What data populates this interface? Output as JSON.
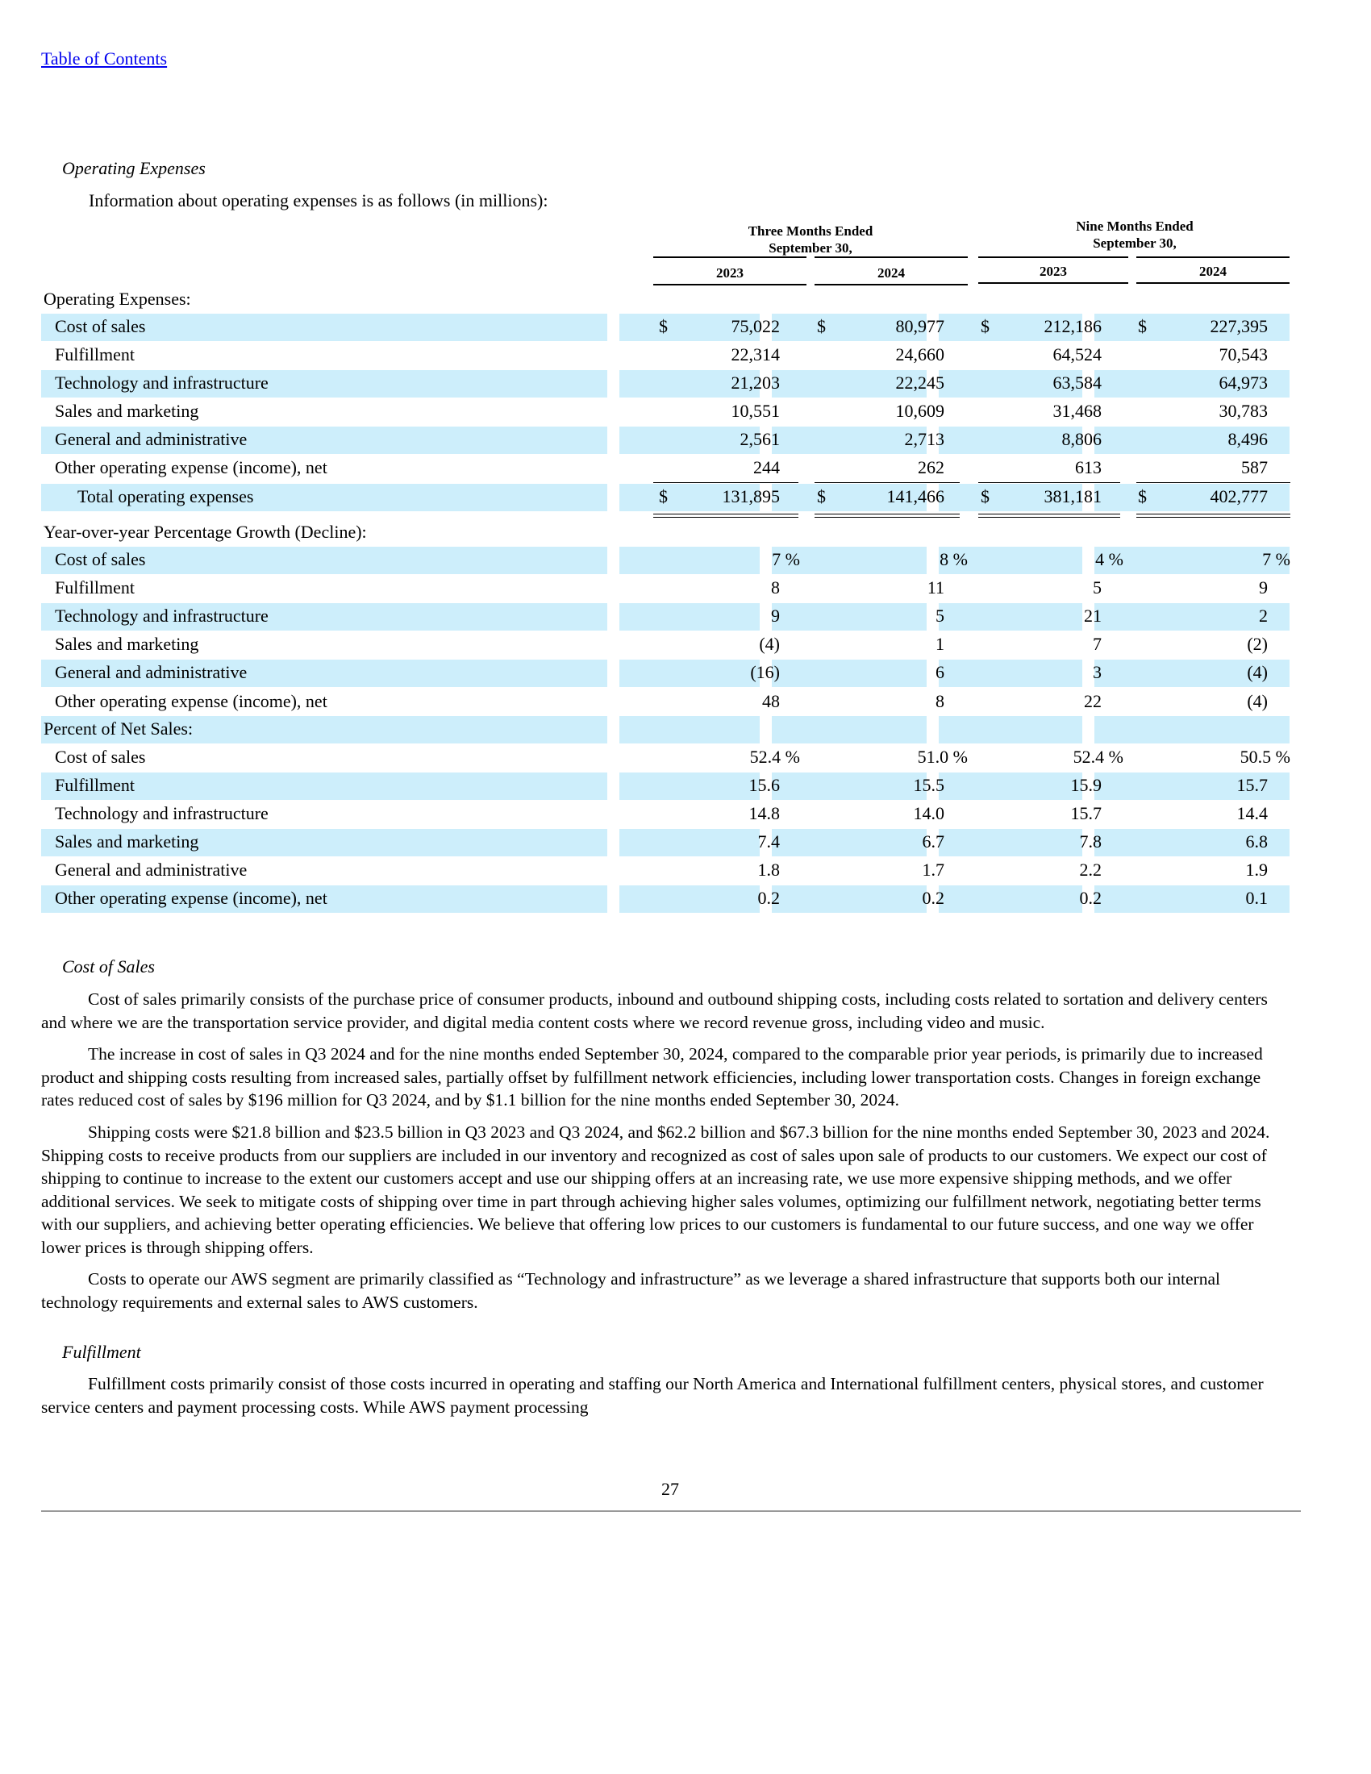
{
  "toc_link": "Table of Contents",
  "section1_title": "Operating Expenses",
  "intro": "Information about operating expenses is as follows (in millions):",
  "table": {
    "group_headers": [
      {
        "line1": "Three Months Ended",
        "line2": "September 30,"
      },
      {
        "line1": "Nine Months Ended",
        "line2": "September 30,"
      }
    ],
    "years": [
      "2023",
      "2024",
      "2023",
      "2024"
    ],
    "rows": [
      {
        "label": "Operating Expenses:",
        "indent": 0,
        "band": false,
        "values": [
          "",
          "",
          "",
          ""
        ],
        "dollar": false
      },
      {
        "label": "Cost of sales",
        "indent": 1,
        "band": true,
        "values": [
          "75,022",
          "80,977",
          "212,186",
          "227,395"
        ],
        "dollar": true
      },
      {
        "label": "Fulfillment",
        "indent": 1,
        "band": false,
        "values": [
          "22,314",
          "24,660",
          "64,524",
          "70,543"
        ],
        "dollar": false
      },
      {
        "label": "Technology and infrastructure",
        "indent": 1,
        "band": true,
        "values": [
          "21,203",
          "22,245",
          "63,584",
          "64,973"
        ],
        "dollar": false
      },
      {
        "label": "Sales and marketing",
        "indent": 1,
        "band": false,
        "values": [
          "10,551",
          "10,609",
          "31,468",
          "30,783"
        ],
        "dollar": false
      },
      {
        "label": "General and administrative",
        "indent": 1,
        "band": true,
        "values": [
          "2,561",
          "2,713",
          "8,806",
          "8,496"
        ],
        "dollar": false
      },
      {
        "label": "Other operating expense (income), net",
        "indent": 1,
        "band": false,
        "values": [
          "244",
          "262",
          "613",
          "587"
        ],
        "dollar": false
      },
      {
        "label": "Total operating expenses",
        "indent": 2,
        "band": true,
        "values": [
          "131,895",
          "141,466",
          "381,181",
          "402,777"
        ],
        "dollar": true
      },
      {
        "label": "Year-over-year Percentage Growth (Decline):",
        "indent": 0,
        "band": false,
        "values": [
          "",
          "",
          "",
          ""
        ],
        "dollar": false
      },
      {
        "label": "Cost of sales",
        "indent": 1,
        "band": true,
        "values": [
          "7 %",
          "8 %",
          "4 %",
          "7 %"
        ],
        "dollar": false
      },
      {
        "label": "Fulfillment",
        "indent": 1,
        "band": false,
        "values": [
          "8",
          "11",
          "5",
          "9"
        ],
        "dollar": false
      },
      {
        "label": "Technology and infrastructure",
        "indent": 1,
        "band": true,
        "values": [
          "9",
          "5",
          "21",
          "2"
        ],
        "dollar": false
      },
      {
        "label": "Sales and marketing",
        "indent": 1,
        "band": false,
        "values": [
          "(4)",
          "1",
          "7",
          "(2)"
        ],
        "dollar": false
      },
      {
        "label": "General and administrative",
        "indent": 1,
        "band": true,
        "values": [
          "(16)",
          "6",
          "3",
          "(4)"
        ],
        "dollar": false
      },
      {
        "label": "Other operating expense (income), net",
        "indent": 1,
        "band": false,
        "values": [
          "48",
          "8",
          "22",
          "(4)"
        ],
        "dollar": false
      },
      {
        "label": "Percent of Net Sales:",
        "indent": 0,
        "band": true,
        "values": [
          "",
          "",
          "",
          ""
        ],
        "dollar": false
      },
      {
        "label": "Cost of sales",
        "indent": 1,
        "band": false,
        "values": [
          "52.4 %",
          "51.0 %",
          "52.4 %",
          "50.5 %"
        ],
        "dollar": false
      },
      {
        "label": "Fulfillment",
        "indent": 1,
        "band": true,
        "values": [
          "15.6",
          "15.5",
          "15.9",
          "15.7"
        ],
        "dollar": false
      },
      {
        "label": "Technology and infrastructure",
        "indent": 1,
        "band": false,
        "values": [
          "14.8",
          "14.0",
          "15.7",
          "14.4"
        ],
        "dollar": false
      },
      {
        "label": "Sales and marketing",
        "indent": 1,
        "band": true,
        "values": [
          "7.4",
          "6.7",
          "7.8",
          "6.8"
        ],
        "dollar": false
      },
      {
        "label": "General and administrative",
        "indent": 1,
        "band": false,
        "values": [
          "1.8",
          "1.7",
          "2.2",
          "1.9"
        ],
        "dollar": false
      },
      {
        "label": "Other operating expense (income), net",
        "indent": 1,
        "band": true,
        "values": [
          "0.2",
          "0.2",
          "0.2",
          "0.1"
        ],
        "dollar": false
      }
    ]
  },
  "section2_title": "Cost of Sales",
  "cos_p1": "Cost of sales primarily consists of the purchase price of consumer products, inbound and outbound shipping costs, including costs related to sortation and delivery centers and where we are the transportation service provider, and digital media content costs where we record revenue gross, including video and music.",
  "cos_p2": "The increase in cost of sales in Q3 2024 and for the nine months ended September 30, 2024, compared to the comparable prior year periods, is primarily due to increased product and shipping costs resulting from increased sales, partially offset by fulfillment network efficiencies, including lower transportation costs. Changes in foreign exchange rates reduced cost of sales by $196 million for Q3 2024, and by $1.1 billion for the nine months ended September 30, 2024.",
  "cos_p3": "Shipping costs were $21.8 billion and $23.5 billion in Q3 2023 and Q3 2024, and $62.2 billion and $67.3 billion for the nine months ended September 30, 2023 and 2024. Shipping costs to receive products from our suppliers are included in our inventory and recognized as cost of sales upon sale of products to our customers. We expect our cost of shipping to continue to increase to the extent our customers accept and use our shipping offers at an increasing rate, we use more expensive shipping methods, and we offer additional services. We seek to mitigate costs of shipping over time in part through achieving higher sales volumes, optimizing our fulfillment network, negotiating better terms with our suppliers, and achieving better operating efficiencies. We believe that offering low prices to our customers is fundamental to our future success, and one way we offer lower prices is through shipping offers.",
  "cos_p4": "Costs to operate our AWS segment are primarily classified as “Technology and infrastructure” as we leverage a shared infrastructure that supports both our internal technology requirements and external sales to AWS customers.",
  "section3_title": "Fulfillment",
  "ful_p1": "Fulfillment costs primarily consist of those costs incurred in operating and staffing our North America and International fulfillment centers, physical stores, and customer service centers and payment processing costs. While AWS payment processing",
  "page_number": "27"
}
